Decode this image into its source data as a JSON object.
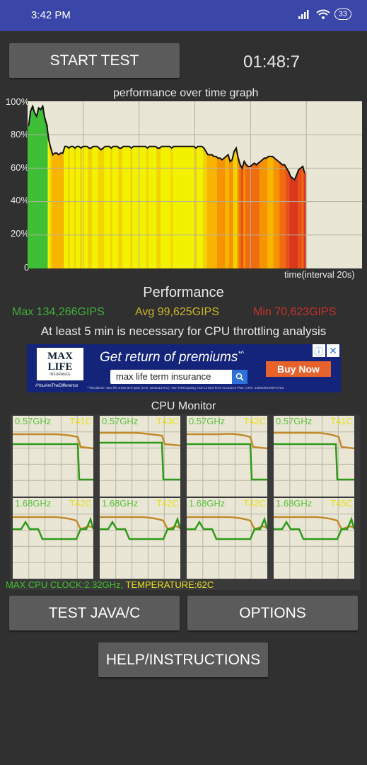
{
  "status_bar": {
    "time": "3:42 PM",
    "battery": "33"
  },
  "toolbar": {
    "start_label": "START TEST",
    "timer": "01:48:7"
  },
  "graph": {
    "title": "performance over time graph",
    "y_ticks": [
      "100%",
      "80%",
      "60%",
      "40%",
      "20%",
      "0"
    ],
    "xlabel": "time(interval 20s)"
  },
  "chart_data": {
    "type": "area",
    "title": "performance over time graph",
    "xlabel": "time(interval 20s)",
    "ylabel": "",
    "ylim": [
      0,
      100
    ],
    "grid": true,
    "x": [
      0,
      1,
      2,
      3,
      4,
      5,
      6,
      7,
      8,
      9,
      10,
      11,
      12,
      13,
      14,
      15,
      16,
      17,
      18,
      19,
      20,
      21,
      22,
      23,
      24,
      25,
      26,
      27,
      28,
      29,
      30,
      31,
      32,
      33,
      34,
      35,
      36,
      37,
      38,
      39,
      40,
      41,
      42,
      43,
      44,
      45,
      46,
      47,
      48,
      49,
      50,
      51,
      52,
      53,
      54,
      55,
      56,
      57,
      58,
      59,
      60,
      61,
      62,
      63,
      64,
      65,
      66,
      67,
      68,
      69,
      70,
      71,
      72,
      73,
      74,
      75,
      76,
      77,
      78,
      79,
      80,
      81,
      82,
      83,
      84,
      85,
      86,
      87,
      88,
      89,
      90,
      91,
      92,
      93,
      94,
      95,
      96,
      97,
      98,
      99,
      100,
      101,
      102,
      103,
      104,
      105,
      106,
      107,
      108,
      109,
      110,
      111,
      112,
      113,
      114,
      115,
      116,
      117,
      118,
      119,
      120,
      121,
      122,
      123,
      124,
      125,
      126,
      127,
      128,
      129,
      130,
      131,
      132,
      133,
      134,
      135,
      136,
      137
    ],
    "values": [
      85,
      94,
      97,
      93,
      91,
      96,
      95,
      97,
      90,
      86,
      77,
      72,
      68,
      69,
      69,
      68,
      69,
      69,
      73,
      73,
      72,
      73,
      73,
      72,
      73,
      73,
      72,
      73,
      73,
      73,
      72,
      72,
      73,
      73,
      73,
      72,
      71,
      72,
      73,
      73,
      73,
      72,
      73,
      73,
      73,
      72,
      72,
      73,
      73,
      73,
      73,
      72,
      73,
      73,
      73,
      73,
      73,
      73,
      73,
      72,
      73,
      73,
      73,
      73,
      72,
      72,
      73,
      73,
      73,
      73,
      73,
      72,
      73,
      73,
      73,
      73,
      73,
      73,
      73,
      73,
      73,
      73,
      73,
      72,
      73,
      73,
      73,
      72,
      70,
      68,
      68,
      68,
      67,
      67,
      66,
      66,
      65,
      66,
      67,
      68,
      64,
      65,
      70,
      72,
      66,
      62,
      60,
      64,
      62,
      61,
      61,
      62,
      63,
      62,
      63,
      64,
      65,
      66,
      66,
      67,
      67,
      67,
      66,
      65,
      64,
      63,
      62,
      62,
      60,
      58,
      55,
      54,
      53,
      56,
      59,
      60,
      61,
      57
    ],
    "stats": {
      "max": "134,266GIPS",
      "avg": "99,625GIPS",
      "min": "70,623GIPS"
    }
  },
  "performance": {
    "title": "Performance",
    "max": "Max 134,266GIPS",
    "avg": "Avg 99,625GIPS",
    "min": "Min 70,623GIPS",
    "throttle_note": "At least 5 min is necessary for CPU throttling analysis"
  },
  "ad": {
    "logo_line1": "MAX",
    "logo_line2": "LIFE",
    "logo_line3": "INSURANCE",
    "tag": "#YouAreTheDifference",
    "headline": "Get return of premiums",
    "headline_mark": "*^",
    "search_text": "max life term insurance",
    "buy_label": "Buy Now",
    "disclaimer": "*^Disclaimer: Max life smart term plan (UIN: 104N113V01) | Non Participating, Non Linked Term Insurance Plan | ARN: 130919/GDN/YATD3",
    "info_icon": "info-icon",
    "close_icon": "close-icon"
  },
  "cpu_monitor": {
    "title": "CPU Monitor",
    "cores": [
      {
        "freq": "0.57GHz",
        "temp": "T41C"
      },
      {
        "freq": "0.57GHz",
        "temp": "T43C"
      },
      {
        "freq": "0.57GHz",
        "temp": "T42C"
      },
      {
        "freq": "0.57GHz",
        "temp": "T41C"
      },
      {
        "freq": "1.68GHz",
        "temp": "T42C"
      },
      {
        "freq": "1.68GHz",
        "temp": "T42C"
      },
      {
        "freq": "1.68GHz",
        "temp": "T42C"
      },
      {
        "freq": "1.68GHz",
        "temp": "T45C"
      }
    ],
    "max_clock": "MAX CPU CLOCK:2.32GHz,",
    "temperature": "TEMPERATURE:62C"
  },
  "buttons": {
    "java_c": "TEST JAVA/C",
    "options": "OPTIONS",
    "help": "HELP/INSTRUCTIONS"
  },
  "colors": {
    "max": "#3fae3a",
    "avg": "#c9b52a",
    "min": "#c8302c",
    "status_bar": "#3a46a8",
    "freq_line": "#2f9a1a",
    "temp_line": "#c08a2a"
  }
}
